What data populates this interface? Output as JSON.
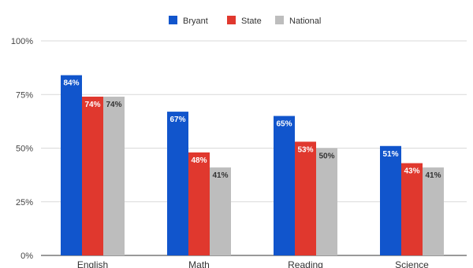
{
  "chart_data": {
    "type": "bar",
    "categories": [
      "English",
      "Math",
      "Reading",
      "Science"
    ],
    "series": [
      {
        "name": "Bryant",
        "color": "#1155CC",
        "values": [
          84,
          67,
          65,
          51
        ]
      },
      {
        "name": "State",
        "color": "#E0382E",
        "values": [
          74,
          48,
          53,
          43
        ]
      },
      {
        "name": "National",
        "color": "#BDBDBD",
        "values": [
          74,
          41,
          50,
          41
        ]
      }
    ],
    "value_suffix": "%",
    "ylim": [
      0,
      100
    ],
    "yticks": [
      0,
      25,
      50,
      75,
      100
    ],
    "ytick_labels": [
      "0%",
      "25%",
      "50%",
      "75%",
      "100%"
    ],
    "grid": true,
    "legend_position": "top-center",
    "data_labels": true,
    "title": "",
    "xlabel": "",
    "ylabel": ""
  }
}
